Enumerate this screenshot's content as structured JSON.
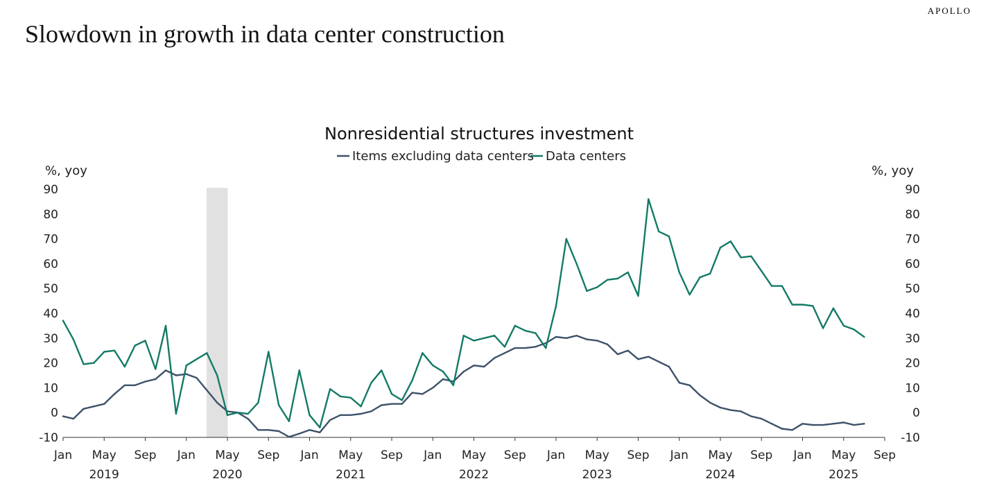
{
  "brand": "APOLLO",
  "page_title": "Slowdown in growth in data center construction",
  "chart_data": {
    "type": "line",
    "title": "Nonresidential structures investment",
    "ylabel_left": "%, yoy",
    "ylabel_right": "%, yoy",
    "ylim": [
      -10,
      90
    ],
    "yticks": [
      -10,
      0,
      10,
      20,
      30,
      40,
      50,
      60,
      70,
      80,
      90
    ],
    "x_start": "2019-01",
    "x_end": "2025-09",
    "xtick_months": [
      "Jan",
      "May",
      "Sep",
      "Jan",
      "May",
      "Sep",
      "Jan",
      "May",
      "Sep",
      "Jan",
      "May",
      "Sep",
      "Jan",
      "May",
      "Sep",
      "Jan",
      "May",
      "Sep",
      "Jan",
      "May",
      "Sep"
    ],
    "year_labels": [
      "2019",
      "2020",
      "2021",
      "2022",
      "2023",
      "2024",
      "2025"
    ],
    "legend_position": "top-center",
    "grid": false,
    "shaded_period": {
      "start_index": 14,
      "end_index": 16,
      "color": "#e0e1e0"
    },
    "series": [
      {
        "name": "Items excluding data centers",
        "color": "#3d5169",
        "values": [
          -1.5,
          -2.5,
          1.5,
          2.5,
          3.5,
          7.5,
          11,
          11,
          12.5,
          13.5,
          17,
          15,
          15.5,
          14,
          9,
          4,
          0.5,
          0,
          -2.5,
          -7,
          -7,
          -7.5,
          -9.8,
          -8.5,
          -7,
          -8,
          -3,
          -1,
          -1,
          -0.5,
          0.5,
          3,
          3.5,
          3.5,
          8,
          7.5,
          10,
          13.5,
          12.5,
          16.5,
          19,
          18.5,
          22,
          24,
          26,
          26,
          26.5,
          28,
          30.5,
          30,
          31,
          29.5,
          29,
          27.5,
          23.5,
          25,
          21.5,
          22.5,
          20.5,
          18.5,
          12,
          11,
          7,
          4,
          2,
          1,
          0.5,
          -1.5,
          -2.5,
          -4.5,
          -6.5,
          -7,
          -4.5,
          -5,
          -5,
          -4.5,
          -4,
          -5,
          -4.5
        ]
      },
      {
        "name": "Data centers",
        "color": "#137a66",
        "values": [
          37,
          29.5,
          19.5,
          20,
          24.5,
          25,
          18.5,
          27,
          29,
          17.5,
          35,
          -0.5,
          19,
          21.5,
          24,
          15,
          -1,
          0,
          -0.5,
          4,
          24.5,
          3,
          -3.5,
          17,
          -1,
          -6,
          9.5,
          6.5,
          6,
          2.5,
          12,
          17,
          7.5,
          5,
          13,
          24,
          19,
          16.5,
          11,
          31,
          29,
          30,
          31,
          26.5,
          35,
          33,
          32,
          26,
          43,
          70,
          60,
          49,
          50.5,
          53.5,
          54,
          56.5,
          47,
          86,
          73,
          71,
          56.5,
          47.5,
          54.5,
          56,
          66.5,
          69,
          62.5,
          63,
          57,
          51,
          51,
          43.5,
          43.5,
          43,
          34,
          42,
          35,
          33.5,
          30.5
        ]
      }
    ]
  }
}
